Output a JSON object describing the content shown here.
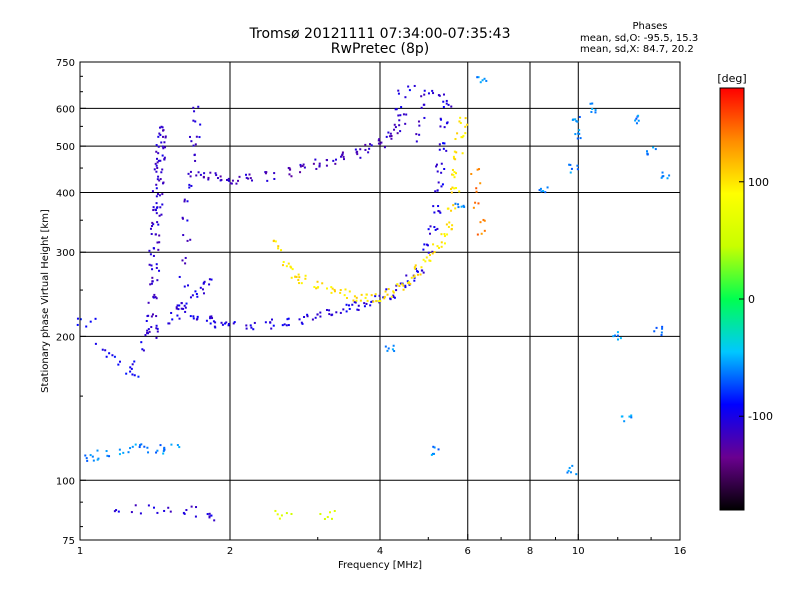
{
  "header": {
    "title": "Tromsø 20121111 07:34:00-07:35:43",
    "subtitle": "RwPretec (8p)",
    "phases_label": "Phases",
    "stats_o": "mean, sd,O:  -95.5, 15.3",
    "stats_x": "mean, sd,X:   84.7, 20.2"
  },
  "colorbar": {
    "unit_label": "[deg]",
    "range": [
      -180,
      180
    ],
    "ticks": [
      {
        "value": 100,
        "label": "100"
      },
      {
        "value": 0,
        "label": "0"
      },
      {
        "value": -100,
        "label": "-100"
      }
    ],
    "colors": [
      "#000000",
      "#6a0090",
      "#0000ff",
      "#00c8ff",
      "#00ff50",
      "#c8ff00",
      "#ffff00",
      "#ff8c00",
      "#ff0000"
    ]
  },
  "chart_data": {
    "type": "scatter",
    "xlabel": "Frequency [MHz]",
    "ylabel": "Stationary phase Virtual Height [km]",
    "xscale": "log",
    "yscale": "log",
    "xlim": [
      1,
      16
    ],
    "ylim": [
      75,
      750
    ],
    "xticks": [
      {
        "value": 1,
        "label": "1"
      },
      {
        "value": 2,
        "label": "2"
      },
      {
        "value": 4,
        "label": "4"
      },
      {
        "value": 6,
        "label": "6"
      },
      {
        "value": 8,
        "label": "8"
      },
      {
        "value": 10,
        "label": "10"
      },
      {
        "value": 16,
        "label": "16"
      }
    ],
    "yticks": [
      {
        "value": 75,
        "label": "75"
      },
      {
        "value": 100,
        "label": "100"
      },
      {
        "value": 200,
        "label": "200"
      },
      {
        "value": 300,
        "label": "300"
      },
      {
        "value": 400,
        "label": "400"
      },
      {
        "value": 500,
        "label": "500"
      },
      {
        "value": 600,
        "label": "600"
      },
      {
        "value": 750,
        "label": "750"
      }
    ],
    "gridlines_x": [
      2,
      4,
      6,
      8,
      10
    ],
    "gridlines_y": [
      100,
      200,
      300,
      400,
      500,
      600
    ],
    "grid": true,
    "color_encoding": "phase [deg]",
    "traces": [
      {
        "points": [
          [
            1.38,
            205
          ],
          [
            1.39,
            220
          ],
          [
            1.4,
            240
          ],
          [
            1.4,
            260
          ],
          [
            1.41,
            280
          ],
          [
            1.41,
            300
          ],
          [
            1.42,
            320
          ],
          [
            1.42,
            340
          ],
          [
            1.43,
            360
          ],
          [
            1.43,
            380
          ],
          [
            1.43,
            400
          ],
          [
            1.44,
            420
          ],
          [
            1.44,
            440
          ],
          [
            1.45,
            460
          ],
          [
            1.45,
            480
          ],
          [
            1.45,
            500
          ],
          [
            1.46,
            520
          ],
          [
            1.46,
            540
          ]
        ],
        "phase": -110
      },
      {
        "points": [
          [
            1.6,
            230
          ],
          [
            1.61,
            260
          ],
          [
            1.62,
            290
          ],
          [
            1.63,
            320
          ],
          [
            1.64,
            350
          ],
          [
            1.65,
            380
          ],
          [
            1.66,
            410
          ],
          [
            1.67,
            440
          ],
          [
            1.68,
            470
          ],
          [
            1.69,
            500
          ],
          [
            1.7,
            530
          ],
          [
            1.71,
            560
          ],
          [
            1.72,
            600
          ]
        ],
        "phase": -108
      },
      {
        "points": [
          [
            1.3,
            175
          ],
          [
            1.35,
            190
          ],
          [
            1.4,
            200
          ],
          [
            1.45,
            208
          ],
          [
            1.5,
            215
          ],
          [
            1.55,
            222
          ],
          [
            1.6,
            230
          ],
          [
            1.65,
            238
          ],
          [
            1.7,
            246
          ],
          [
            1.75,
            252
          ],
          [
            1.8,
            256
          ],
          [
            1.85,
            258
          ]
        ],
        "phase": -100
      },
      {
        "points": [
          [
            1.6,
            230
          ],
          [
            1.7,
            222
          ],
          [
            1.8,
            216
          ],
          [
            1.9,
            212
          ],
          [
            2.0,
            210
          ],
          [
            2.2,
            210
          ],
          [
            2.4,
            212
          ],
          [
            2.6,
            214
          ],
          [
            2.8,
            217
          ],
          [
            3.0,
            220
          ],
          [
            3.2,
            224
          ],
          [
            3.4,
            228
          ],
          [
            3.6,
            232
          ],
          [
            3.8,
            236
          ],
          [
            4.0,
            240
          ],
          [
            4.2,
            245
          ],
          [
            4.4,
            252
          ],
          [
            4.6,
            262
          ],
          [
            4.8,
            278
          ],
          [
            5.0,
            305
          ],
          [
            5.1,
            335
          ],
          [
            5.2,
            370
          ],
          [
            5.25,
            410
          ],
          [
            5.3,
            450
          ],
          [
            5.35,
            500
          ],
          [
            5.4,
            560
          ],
          [
            5.45,
            610
          ]
        ],
        "phase": -102
      },
      {
        "points": [
          [
            1.75,
            440
          ],
          [
            1.85,
            432
          ],
          [
            1.95,
            428
          ],
          [
            2.05,
            425
          ],
          [
            2.2,
            426
          ],
          [
            2.4,
            432
          ],
          [
            2.6,
            440
          ],
          [
            2.8,
            450
          ],
          [
            3.0,
            458
          ],
          [
            3.2,
            466
          ],
          [
            3.4,
            475
          ],
          [
            3.6,
            484
          ],
          [
            3.8,
            495
          ],
          [
            4.0,
            508
          ],
          [
            4.2,
            525
          ],
          [
            4.35,
            545
          ],
          [
            4.45,
            570
          ]
        ],
        "phase": -115
      },
      {
        "points": [
          [
            4.7,
            520
          ],
          [
            4.8,
            560
          ],
          [
            4.9,
            600
          ],
          [
            4.95,
            640
          ]
        ],
        "phase": -110
      },
      {
        "points": [
          [
            2.5,
            310
          ],
          [
            2.6,
            285
          ],
          [
            2.7,
            270
          ],
          [
            2.8,
            262
          ],
          [
            3.0,
            255
          ],
          [
            3.2,
            250
          ],
          [
            3.4,
            245
          ],
          [
            3.6,
            242
          ],
          [
            3.8,
            240
          ],
          [
            4.0,
            242
          ],
          [
            4.2,
            246
          ],
          [
            4.4,
            252
          ],
          [
            4.6,
            262
          ],
          [
            4.8,
            275
          ],
          [
            5.0,
            290
          ],
          [
            5.2,
            305
          ],
          [
            5.4,
            320
          ],
          [
            5.5,
            340
          ],
          [
            5.6,
            370
          ],
          [
            5.65,
            400
          ],
          [
            5.7,
            440
          ],
          [
            5.75,
            480
          ],
          [
            5.8,
            520
          ],
          [
            5.85,
            560
          ]
        ],
        "phase": 100
      },
      {
        "points": [
          [
            1.02,
            110
          ],
          [
            1.05,
            111
          ],
          [
            1.1,
            113
          ],
          [
            1.15,
            114
          ],
          [
            1.2,
            115
          ],
          [
            1.25,
            116
          ],
          [
            1.3,
            118
          ],
          [
            1.35,
            118
          ],
          [
            1.4,
            117
          ],
          [
            1.45,
            117
          ],
          [
            1.5,
            116
          ],
          [
            1.55,
            116
          ]
        ],
        "phase": -60
      },
      {
        "points": [
          [
            1.2,
            88
          ],
          [
            1.3,
            87
          ],
          [
            1.4,
            87
          ],
          [
            1.5,
            86
          ],
          [
            1.6,
            86
          ],
          [
            1.7,
            86
          ],
          [
            1.8,
            85
          ],
          [
            1.85,
            84
          ]
        ],
        "phase": -105
      },
      {
        "points": [
          [
            2.5,
            85
          ],
          [
            2.6,
            86
          ],
          [
            3.1,
            85
          ],
          [
            3.2,
            85
          ]
        ],
        "phase": 60
      },
      {
        "points": [
          [
            1.0,
            216
          ],
          [
            1.05,
            214
          ],
          [
            1.1,
            190
          ],
          [
            1.15,
            182
          ],
          [
            1.2,
            178
          ],
          [
            1.25,
            170
          ],
          [
            1.3,
            165
          ]
        ],
        "phase": -95
      },
      {
        "points": [
          [
            6.2,
            440
          ],
          [
            6.25,
            410
          ],
          [
            6.3,
            380
          ],
          [
            6.35,
            350
          ],
          [
            6.4,
            330
          ]
        ],
        "phase": 140
      },
      {
        "points": [
          [
            4.4,
            610
          ],
          [
            4.45,
            640
          ],
          [
            4.6,
            660
          ],
          [
            5.0,
            660
          ],
          [
            5.3,
            640
          ]
        ],
        "phase": -100
      },
      {
        "points": [
          [
            6.4,
            690
          ],
          [
            8.5,
            410
          ],
          [
            9.8,
            450
          ],
          [
            9.9,
            530
          ],
          [
            9.9,
            570
          ],
          [
            10.8,
            600
          ],
          [
            13.0,
            570
          ],
          [
            14.0,
            490
          ],
          [
            12.0,
            200
          ],
          [
            14.5,
            205
          ],
          [
            12.5,
            135
          ],
          [
            15.0,
            430
          ],
          [
            9.7,
            105
          ],
          [
            5.2,
            115
          ],
          [
            4.2,
            190
          ],
          [
            5.8,
            380
          ]
        ],
        "phase": -60
      }
    ]
  }
}
